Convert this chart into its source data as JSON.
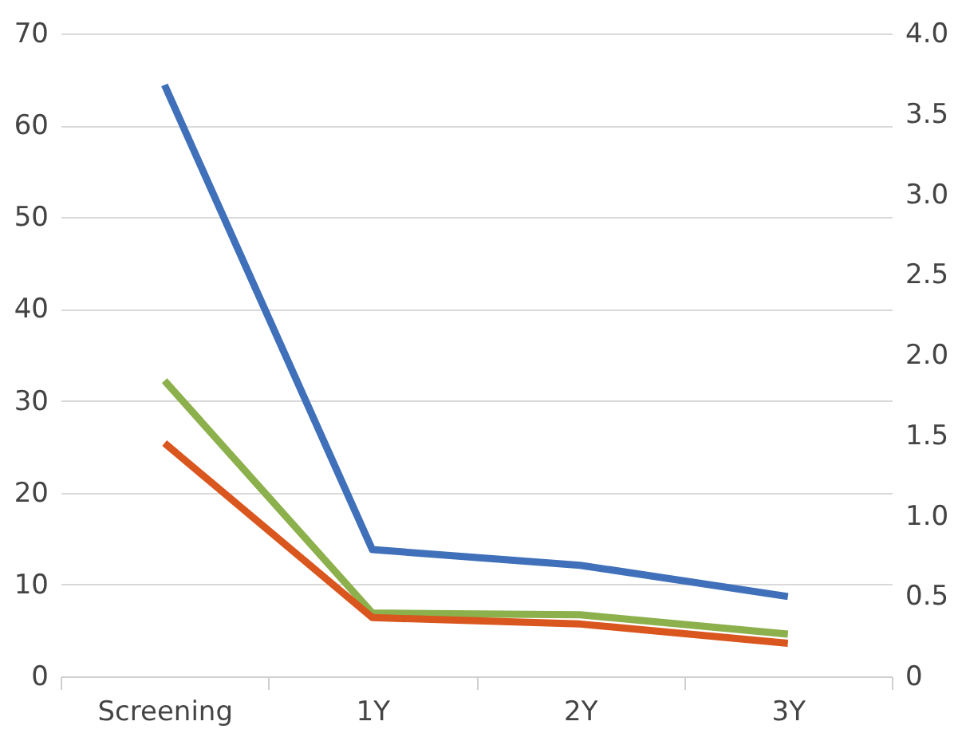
{
  "chart_data": {
    "type": "line",
    "categories": [
      "Screening",
      "1Y",
      "2Y",
      "3Y"
    ],
    "series": [
      {
        "color": "#3f70b9",
        "values": [
          64.4,
          13.8,
          12.1,
          8.7
        ]
      },
      {
        "color": "#8cb04b",
        "values": [
          32.2,
          6.9,
          6.7,
          4.6
        ]
      },
      {
        "color": "#d9561f",
        "values": [
          25.4,
          6.4,
          5.7,
          3.6
        ]
      }
    ],
    "ylim": [
      0,
      70
    ],
    "yticks": [
      0,
      10,
      20,
      30,
      40,
      50,
      60,
      70
    ],
    "y2lim": [
      0,
      4
    ],
    "y2ticks": [
      0,
      {
        "value": 0.5,
        "label": "0.5"
      },
      {
        "value": 1,
        "label": "1.0"
      },
      {
        "value": 1.5,
        "label": "1.5"
      },
      {
        "value": 2,
        "label": "2.0"
      },
      {
        "value": 2.5,
        "label": "2.5"
      },
      {
        "value": 3,
        "label": "3.0"
      },
      {
        "value": 3.5,
        "label": "3.5"
      },
      {
        "value": 4,
        "label": "4.0"
      }
    ],
    "grid": "y",
    "marker": "none",
    "line_style": "solid"
  }
}
